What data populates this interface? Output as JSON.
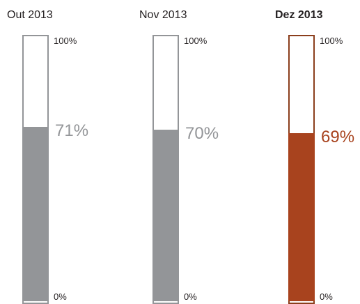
{
  "chart_data": {
    "type": "bar",
    "categories": [
      "Out 2013",
      "Nov 2013",
      "Dez 2013"
    ],
    "values": [
      71,
      70,
      69
    ],
    "value_labels": [
      "71%",
      "70%",
      "69%"
    ],
    "highlight_index": 2,
    "ylim": [
      0,
      100
    ],
    "max_label": "100%",
    "min_label": "0%",
    "title": "",
    "xlabel": "",
    "ylabel": "",
    "grid": false,
    "colors": {
      "fill": "#939598",
      "frame": "#939598",
      "value_text": "#939598",
      "highlight_fill": "#a8431e",
      "highlight_frame": "#8b3e1c",
      "highlight_text": "#a8431e"
    }
  }
}
